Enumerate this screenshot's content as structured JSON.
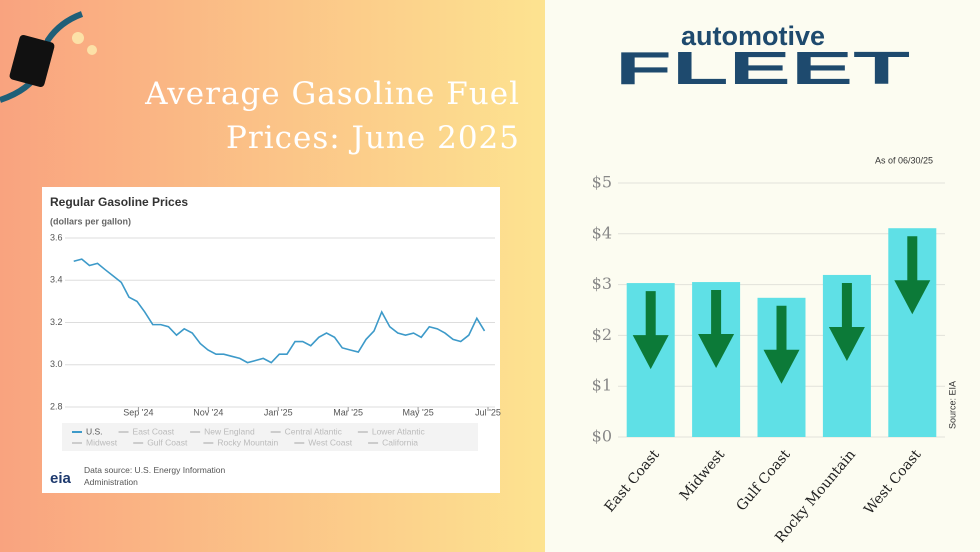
{
  "title": "Average Gasoline Fuel Prices: June 2025",
  "logo": {
    "top": "automotive",
    "bottom": "FLEET"
  },
  "chart_data": [
    {
      "type": "line",
      "title": "Regular Gasoline Prices",
      "subtitle": "(dollars per gallon)",
      "xlim": [
        5.9,
        18.2
      ],
      "xticks": [
        {
          "value": 8,
          "label": "Sep '24"
        },
        {
          "value": 10,
          "label": "Nov '24"
        },
        {
          "value": 12,
          "label": "Jan '25"
        },
        {
          "value": 14,
          "label": "Mar '25"
        },
        {
          "value": 16,
          "label": "May '25"
        },
        {
          "value": 18,
          "label": "Jul '25"
        }
      ],
      "ylim": [
        2.8,
        3.6
      ],
      "yticks": [
        {
          "value": 2.8,
          "label": "2.8"
        },
        {
          "value": 3.0,
          "label": "3.0"
        },
        {
          "value": 3.2,
          "label": "3.2"
        },
        {
          "value": 3.4,
          "label": "3.4"
        },
        {
          "value": 3.6,
          "label": "3.6"
        }
      ],
      "grid": true,
      "series": [
        {
          "name": "U.S.",
          "color": "#3d9ac9",
          "x": [
            6.15,
            6.38,
            6.6,
            6.83,
            7.05,
            7.28,
            7.51,
            7.73,
            7.96,
            8.18,
            8.41,
            8.64,
            8.86,
            9.09,
            9.31,
            9.54,
            9.77,
            9.99,
            10.22,
            10.44,
            10.67,
            10.9,
            11.12,
            11.35,
            11.57,
            11.8,
            12.03,
            12.25,
            12.48,
            12.7,
            12.93,
            13.16,
            13.38,
            13.61,
            13.83,
            14.06,
            14.29,
            14.51,
            14.74,
            14.96,
            15.19,
            15.42,
            15.64,
            15.87,
            16.09,
            16.32,
            16.55,
            16.77,
            17.0,
            17.22,
            17.45,
            17.68,
            17.9
          ],
          "values": [
            3.49,
            3.5,
            3.47,
            3.48,
            3.45,
            3.42,
            3.39,
            3.32,
            3.3,
            3.25,
            3.19,
            3.19,
            3.18,
            3.14,
            3.17,
            3.15,
            3.1,
            3.07,
            3.05,
            3.05,
            3.04,
            3.03,
            3.01,
            3.02,
            3.03,
            3.01,
            3.05,
            3.05,
            3.11,
            3.11,
            3.09,
            3.13,
            3.15,
            3.13,
            3.08,
            3.07,
            3.06,
            3.12,
            3.16,
            3.25,
            3.18,
            3.15,
            3.14,
            3.15,
            3.13,
            3.18,
            3.17,
            3.15,
            3.12,
            3.11,
            3.14,
            3.22,
            3.16
          ]
        }
      ],
      "inactive_series": [
        "East Coast",
        "New England",
        "Central Atlantic",
        "Lower Atlantic",
        "Midwest",
        "Gulf Coast",
        "Rocky Mountain",
        "West Coast",
        "California"
      ],
      "source_logo": "eia",
      "source": "Data source: U.S. Energy Information Administration"
    },
    {
      "type": "bar",
      "annotation": "As of 06/30/25",
      "source": "Source: EIA",
      "categories": [
        "East Coast",
        "Midwest",
        "Gulf Coast",
        "Rocky Mountain",
        "West Coast"
      ],
      "values": [
        3.03,
        3.05,
        2.74,
        3.19,
        4.11
      ],
      "color": "#5fe0e6",
      "ylim": [
        0,
        5
      ],
      "yticks": [
        {
          "value": 0,
          "label": "$0"
        },
        {
          "value": 1,
          "label": "$1"
        },
        {
          "value": 2,
          "label": "$2"
        },
        {
          "value": 3,
          "label": "$3"
        },
        {
          "value": 4,
          "label": "$4"
        },
        {
          "value": 5,
          "label": "$5"
        }
      ],
      "grid": true
    }
  ]
}
